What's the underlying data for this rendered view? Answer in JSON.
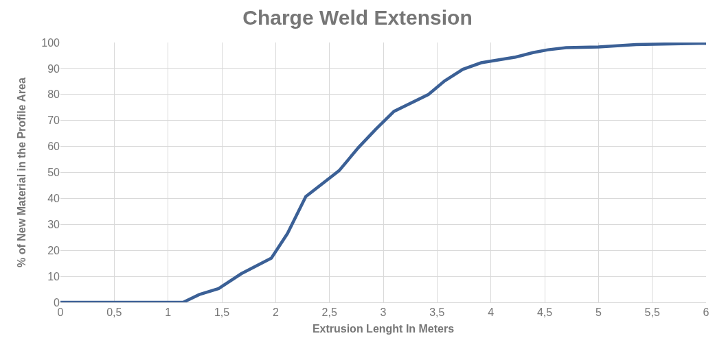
{
  "chart_data": {
    "type": "line",
    "title": "Charge Weld Extension",
    "xlabel": "Extrusion Lenght In Meters",
    "ylabel": "% of New Material in the Profile Area",
    "x": [
      0,
      1.14,
      1.29,
      1.47,
      1.68,
      1.96,
      2.11,
      2.28,
      2.59,
      2.77,
      2.93,
      3.1,
      3.42,
      3.57,
      3.74,
      3.91,
      4.23,
      4.39,
      4.53,
      4.7,
      5.0,
      5.35,
      6
    ],
    "series": [
      {
        "color": "#3b6096",
        "values": [
          0,
          0,
          3,
          5.3,
          11,
          17,
          26.5,
          40.7,
          50.7,
          59.6,
          66.6,
          73.5,
          80,
          85.2,
          89.7,
          92.2,
          94.4,
          96.1,
          97.2,
          98,
          98.3,
          99.2,
          99.7
        ]
      }
    ],
    "xlim": [
      0,
      6
    ],
    "ylim": [
      0,
      100
    ],
    "xticks": [
      0,
      {
        "value": 0.5,
        "label": "0,5"
      },
      1,
      {
        "value": 1.5,
        "label": "1,5"
      },
      2,
      {
        "value": 2.5,
        "label": "2,5"
      },
      3,
      {
        "value": 3.5,
        "label": "3,5"
      },
      4,
      {
        "value": 4.5,
        "label": "4,5"
      },
      5,
      {
        "value": 5.5,
        "label": "5,5"
      },
      6
    ],
    "yticks": [
      0,
      10,
      20,
      30,
      40,
      50,
      60,
      70,
      80,
      90,
      100
    ],
    "grid": true,
    "legend": false,
    "marker": "none",
    "line_style": "solid"
  }
}
